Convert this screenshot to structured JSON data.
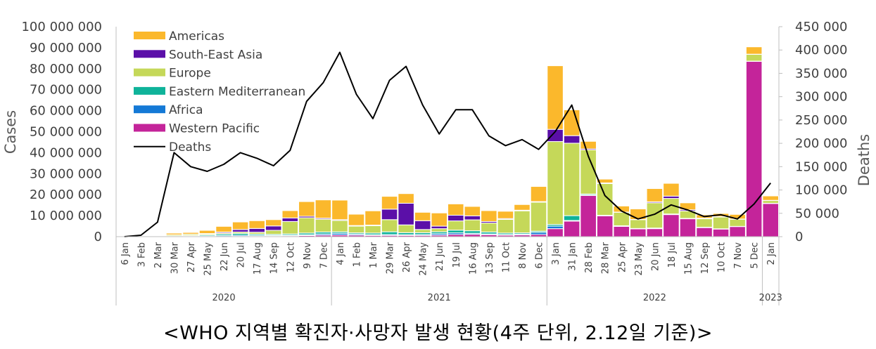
{
  "caption": "<WHO 지역별 확진자·사망자 발생 현황(4주 단위, 2.12일 기준)>",
  "colors": {
    "Americas": "#FBB82C",
    "South-East Asia": "#5B0FA8",
    "Europe": "#C5D859",
    "Eastern Mediterranean": "#0FB39A",
    "Africa": "#1479D6",
    "Western Pacific": "#C4249A",
    "Deaths": "#000000"
  },
  "chart_data": {
    "type": "bar",
    "stacked": true,
    "xlabel": "",
    "ylabel": "Cases",
    "y2label": "Deaths",
    "ylim": [
      0,
      100000000
    ],
    "y2lim": [
      0,
      450000
    ],
    "yticks": [
      "0",
      "10 000 000",
      "20 000 000",
      "30 000 000",
      "40 000 000",
      "50 000 000",
      "60 000 000",
      "70 000 000",
      "80 000 000",
      "90 000 000",
      "100 000 000"
    ],
    "y2ticks": [
      "0",
      "50 000",
      "100 000",
      "150 000",
      "200 000",
      "250 000",
      "300 000",
      "350 000",
      "400 000",
      "450 000"
    ],
    "legend_position": "top-left",
    "categories": [
      "6 Jan",
      "3 Feb",
      "2 Mar",
      "30 Mar",
      "27 Apr",
      "25 May",
      "22 Jun",
      "20 Jul",
      "17 Aug",
      "14 Sep",
      "12 Oct",
      "9 Nov",
      "7 Dec",
      "4 Jan",
      "1 Feb",
      "1 Mar",
      "29 Mar",
      "26 Apr",
      "24 May",
      "21 Jun",
      "19 Jul",
      "16 Aug",
      "13 Sep",
      "11 Oct",
      "8 Nov",
      "6 Dec",
      "3 Jan",
      "31 Jan",
      "28 Feb",
      "28 Mar",
      "25 Apr",
      "23 May",
      "20 Jun",
      "18 Jul",
      "15 Aug",
      "12 Sep",
      "10 Oct",
      "7 Nov",
      "5 Dec",
      "2 Jan"
    ],
    "years": [
      {
        "label": "2020",
        "from": 0,
        "to": 12
      },
      {
        "label": "2021",
        "from": 13,
        "to": 25
      },
      {
        "label": "2022",
        "from": 26,
        "to": 38
      },
      {
        "label": "2023",
        "from": 39,
        "to": 39
      }
    ],
    "series": [
      {
        "name": "Western Pacific",
        "values": [
          10000,
          50000,
          300000,
          200000,
          100000,
          100000,
          100000,
          200000,
          200000,
          300000,
          400000,
          500000,
          700000,
          800000,
          700000,
          600000,
          600000,
          600000,
          600000,
          700000,
          1000000,
          1100000,
          900000,
          700000,
          800000,
          1000000,
          3800000,
          7400000,
          19600000,
          9900000,
          4900000,
          3700000,
          3800000,
          10500000,
          8500000,
          4300000,
          3600000,
          4800000,
          83500000,
          15800000
        ]
      },
      {
        "name": "Africa",
        "values": [
          0,
          0,
          0,
          50000,
          100000,
          200000,
          400000,
          500000,
          400000,
          300000,
          300000,
          400000,
          600000,
          800000,
          500000,
          300000,
          400000,
          300000,
          400000,
          700000,
          800000,
          500000,
          400000,
          300000,
          400000,
          1000000,
          1200000,
          300000,
          200000,
          100000,
          100000,
          100000,
          100000,
          100000,
          100000,
          100000,
          100000,
          50000,
          50000,
          50000
        ]
      },
      {
        "name": "Eastern Mediterranean",
        "values": [
          0,
          0,
          0,
          100000,
          300000,
          500000,
          700000,
          800000,
          600000,
          500000,
          600000,
          800000,
          900000,
          700000,
          600000,
          800000,
          1300000,
          1000000,
          900000,
          900000,
          1300000,
          1200000,
          900000,
          700000,
          600000,
          600000,
          800000,
          2300000,
          500000,
          200000,
          200000,
          100000,
          200000,
          200000,
          100000,
          100000,
          50000,
          50000,
          50000,
          50000
        ]
      },
      {
        "name": "Europe",
        "values": [
          0,
          0,
          0,
          500000,
          600000,
          500000,
          500000,
          700000,
          900000,
          1900000,
          5900000,
          7300000,
          6100000,
          5400000,
          3200000,
          3500000,
          5800000,
          3700000,
          1500000,
          1500000,
          4400000,
          5200000,
          4300000,
          6500000,
          10500000,
          13800000,
          39500000,
          34500000,
          21000000,
          15100000,
          6400000,
          4200000,
          12000000,
          7400000,
          3500000,
          4000000,
          5600000,
          3400000,
          3200000,
          1300000
        ]
      },
      {
        "name": "South-East Asia",
        "values": [
          0,
          0,
          0,
          10000,
          100000,
          200000,
          500000,
          1200000,
          1800000,
          2100000,
          1700000,
          700000,
          500000,
          400000,
          300000,
          300000,
          5000000,
          10300000,
          4200000,
          1200000,
          2700000,
          1900000,
          700000,
          400000,
          300000,
          300000,
          5800000,
          3600000,
          500000,
          300000,
          100000,
          100000,
          500000,
          1100000,
          600000,
          300000,
          200000,
          100000,
          100000,
          100000
        ]
      },
      {
        "name": "Americas",
        "values": [
          0,
          0,
          0,
          800000,
          800000,
          1500000,
          2700000,
          3600000,
          3700000,
          3000000,
          3500000,
          7000000,
          8700000,
          9300000,
          5400000,
          6800000,
          6100000,
          4600000,
          4000000,
          6300000,
          5400000,
          4500000,
          5200000,
          3500000,
          2700000,
          7200000,
          30300000,
          12300000,
          3600000,
          1800000,
          2900000,
          5000000,
          6300000,
          6100000,
          3300000,
          1600000,
          1500000,
          2200000,
          3500000,
          2100000
        ]
      }
    ],
    "line": {
      "name": "Deaths",
      "axis": "right",
      "values": [
        0,
        3000,
        31000,
        180000,
        150000,
        140000,
        155000,
        180000,
        168000,
        152000,
        185000,
        290000,
        330000,
        395000,
        305000,
        253000,
        335000,
        365000,
        282000,
        220000,
        272000,
        272000,
        216000,
        195000,
        208000,
        187000,
        225000,
        282000,
        172000,
        88000,
        55000,
        38000,
        48000,
        68000,
        57000,
        43000,
        47000,
        38000,
        70000,
        115000
      ]
    }
  }
}
